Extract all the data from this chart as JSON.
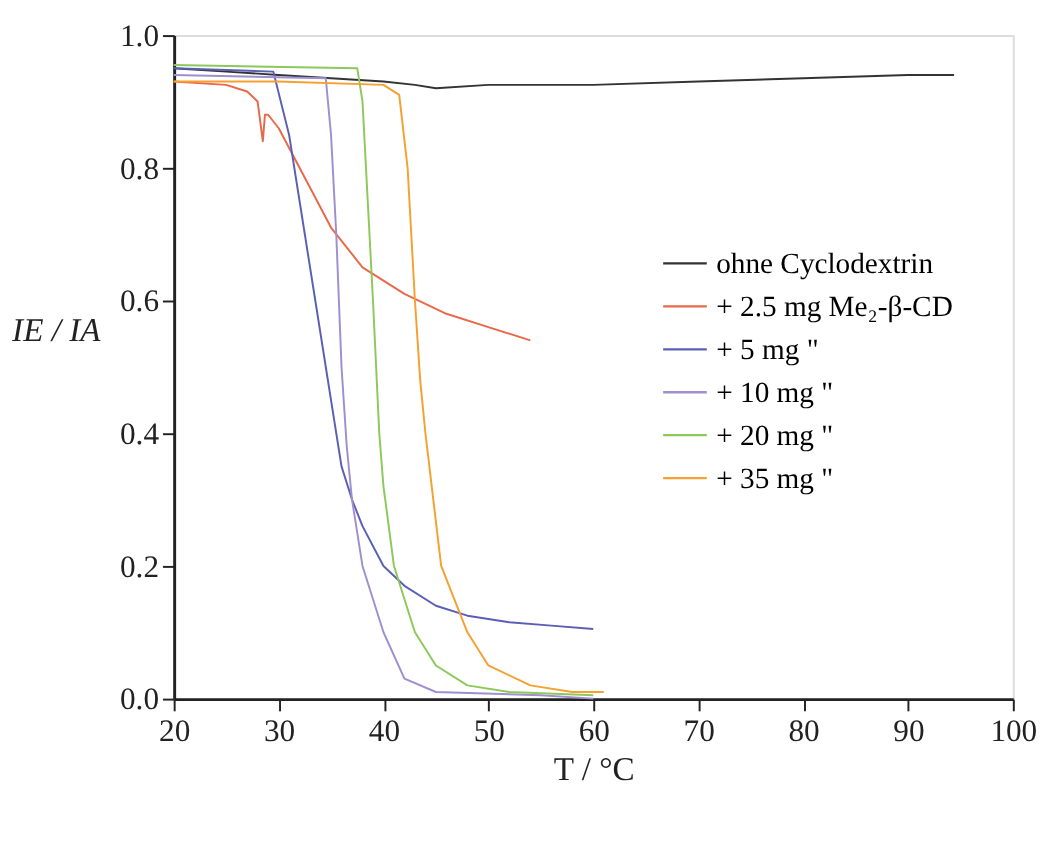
{
  "chart_data": {
    "type": "line",
    "xlabel": "T / °C",
    "ylabel": "IE / IA",
    "xlim": [
      20,
      100
    ],
    "ylim": [
      0,
      1.0
    ],
    "xticks": [
      20,
      30,
      40,
      50,
      60,
      70,
      80,
      90,
      100
    ],
    "yticks": [
      {
        "value": 0,
        "label": "0.0"
      },
      0.2,
      0.4,
      0.6,
      0.8,
      {
        "value": 1,
        "label": "1.0"
      }
    ],
    "grid": false,
    "legend": "right",
    "marker": "none",
    "line_style": "solid",
    "series": [
      {
        "name": "ohne Cyclodextrin",
        "color": "#333333",
        "x": [
          20,
          25,
          30,
          35,
          40,
          43,
          45,
          50,
          60,
          70,
          80,
          90,
          94.4
        ],
        "values": [
          0.95,
          0.945,
          0.94,
          0.935,
          0.93,
          0.925,
          0.92,
          0.925,
          0.925,
          0.93,
          0.935,
          0.94,
          0.94
        ]
      },
      {
        "name": "+ 2.5 mg Me₂-β-CD",
        "color": "#e8694a",
        "x": [
          20,
          25,
          27,
          28,
          28.5,
          28.7,
          29,
          30,
          32,
          35,
          38,
          42,
          46,
          50,
          54
        ],
        "values": [
          0.93,
          0.925,
          0.915,
          0.9,
          0.84,
          0.88,
          0.88,
          0.86,
          0.8,
          0.71,
          0.65,
          0.61,
          0.58,
          0.56,
          0.54
        ]
      },
      {
        "name": "+ 5 mg \"",
        "color": "#5a5fb5",
        "x": [
          20,
          29.5,
          31,
          32,
          33.5,
          35,
          36,
          37,
          38,
          40,
          42,
          45,
          48,
          52,
          56,
          60
        ],
        "values": [
          0.95,
          0.945,
          0.85,
          0.75,
          0.6,
          0.45,
          0.35,
          0.3,
          0.26,
          0.2,
          0.17,
          0.14,
          0.125,
          0.115,
          0.11,
          0.105
        ]
      },
      {
        "name": "+ 10 mg \"",
        "color": "#9f8fd0",
        "x": [
          20,
          34.5,
          35,
          35.5,
          36,
          36.5,
          37,
          38,
          40,
          42,
          45,
          55,
          60
        ],
        "values": [
          0.94,
          0.935,
          0.85,
          0.7,
          0.5,
          0.38,
          0.3,
          0.2,
          0.1,
          0.03,
          0.01,
          0.005,
          0.0
        ]
      },
      {
        "name": "+ 20 mg \"",
        "color": "#8cc85a",
        "x": [
          20,
          37.5,
          38,
          38.5,
          39,
          39.6,
          40,
          41,
          43,
          45,
          48,
          52,
          60
        ],
        "values": [
          0.955,
          0.95,
          0.9,
          0.75,
          0.6,
          0.4,
          0.32,
          0.2,
          0.1,
          0.05,
          0.02,
          0.01,
          0.005
        ]
      },
      {
        "name": "+ 35 mg \"",
        "color": "#f5a030",
        "x": [
          20,
          30,
          40,
          41.5,
          42.3,
          43,
          43.5,
          44,
          45.5,
          48,
          50,
          54,
          58,
          61
        ],
        "values": [
          0.93,
          0.93,
          0.925,
          0.91,
          0.8,
          0.6,
          0.48,
          0.4,
          0.2,
          0.1,
          0.05,
          0.02,
          0.01,
          0.01
        ]
      }
    ]
  }
}
